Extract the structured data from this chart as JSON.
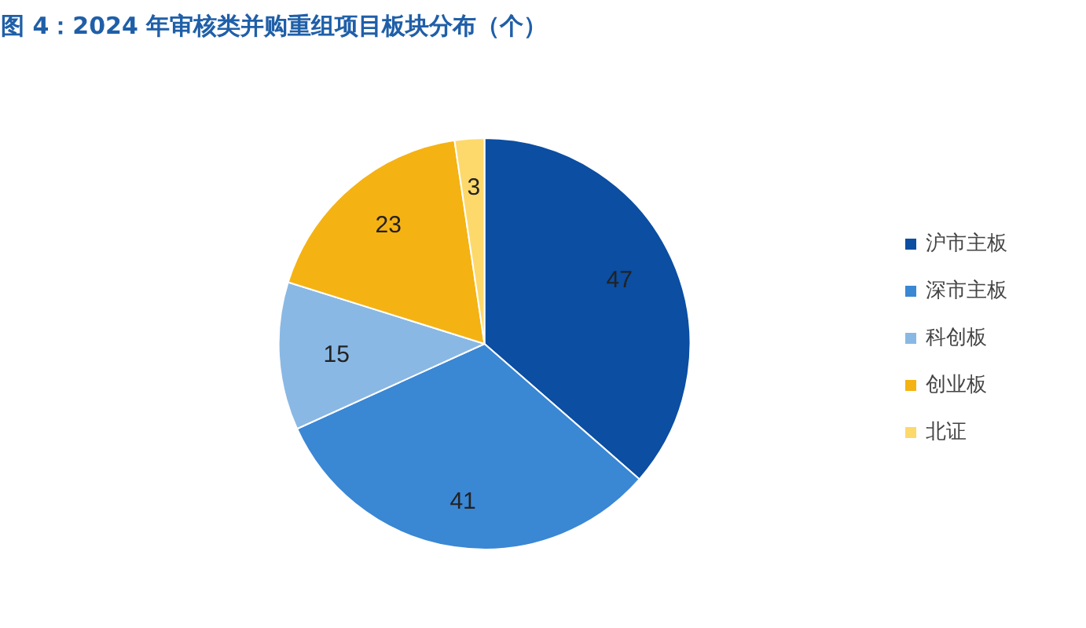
{
  "chart_data": {
    "type": "pie",
    "title": "图 4：2024 年审核类并购重组项目板块分布（个）",
    "categories": [
      "沪市主板",
      "深市主板",
      "科创板",
      "创业板",
      "北证"
    ],
    "values": [
      47,
      41,
      15,
      23,
      3
    ],
    "colors": [
      "#0b4ea2",
      "#3a87d4",
      "#8ab8e4",
      "#f5b213",
      "#fdd96b"
    ],
    "data_labels": true,
    "legend": "right"
  }
}
